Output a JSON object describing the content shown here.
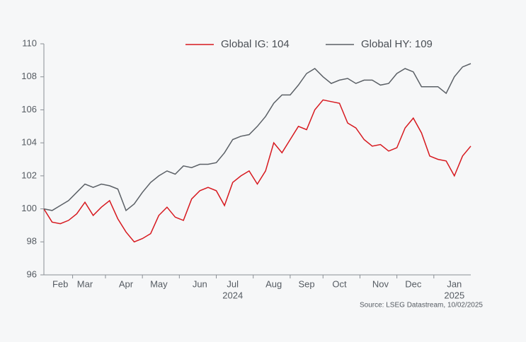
{
  "chart_data": {
    "type": "line",
    "categories": [
      null,
      null,
      "Feb",
      null,
      null,
      "Mar",
      null,
      null,
      null,
      null,
      "Apr",
      null,
      null,
      null,
      "May",
      null,
      null,
      null,
      null,
      "Jun",
      null,
      null,
      null,
      "Jul",
      null,
      null,
      null,
      null,
      "Aug",
      null,
      null,
      null,
      "Sep",
      null,
      null,
      null,
      "Oct",
      null,
      null,
      null,
      null,
      "Nov",
      null,
      null,
      null,
      "Dec",
      null,
      null,
      null,
      null,
      "Jan",
      null,
      null
    ],
    "year_labels": [
      {
        "label": "2024",
        "under": "Jul"
      },
      {
        "label": "2025",
        "under": "Jan"
      }
    ],
    "series": [
      {
        "name": "Global IG: 104",
        "color": "#d7191f",
        "values": [
          100.0,
          99.2,
          99.1,
          99.3,
          99.7,
          100.4,
          99.6,
          100.1,
          100.5,
          99.4,
          98.6,
          98.0,
          98.2,
          98.5,
          99.6,
          100.1,
          99.5,
          99.3,
          100.6,
          101.1,
          101.3,
          101.1,
          100.2,
          101.6,
          102.0,
          102.3,
          101.5,
          102.3,
          104.0,
          103.4,
          104.2,
          105.0,
          104.8,
          106.0,
          106.6,
          106.5,
          106.4,
          105.2,
          104.9,
          104.2,
          103.8,
          103.9,
          103.5,
          103.7,
          104.9,
          105.5,
          104.6,
          103.2,
          103.0,
          102.9,
          102.0,
          103.2,
          103.8
        ]
      },
      {
        "name": "Global HY: 109",
        "color": "#5b6066",
        "values": [
          100.0,
          99.9,
          100.2,
          100.5,
          101.0,
          101.5,
          101.3,
          101.5,
          101.4,
          101.2,
          99.9,
          100.3,
          101.0,
          101.6,
          102.0,
          102.3,
          102.1,
          102.6,
          102.5,
          102.7,
          102.7,
          102.8,
          103.4,
          104.2,
          104.4,
          104.5,
          105.0,
          105.6,
          106.4,
          106.9,
          106.9,
          107.5,
          108.2,
          108.5,
          108.0,
          107.6,
          107.8,
          107.9,
          107.6,
          107.8,
          107.8,
          107.5,
          107.6,
          108.2,
          108.5,
          108.3,
          107.4,
          107.4,
          107.4,
          107.0,
          108.0,
          108.6,
          108.8
        ]
      }
    ],
    "ylim": [
      96,
      110
    ],
    "yticks": [
      96,
      98,
      100,
      102,
      104,
      106,
      108,
      110
    ],
    "source": "Source: LSEG Datastream, 10/02/2025"
  }
}
